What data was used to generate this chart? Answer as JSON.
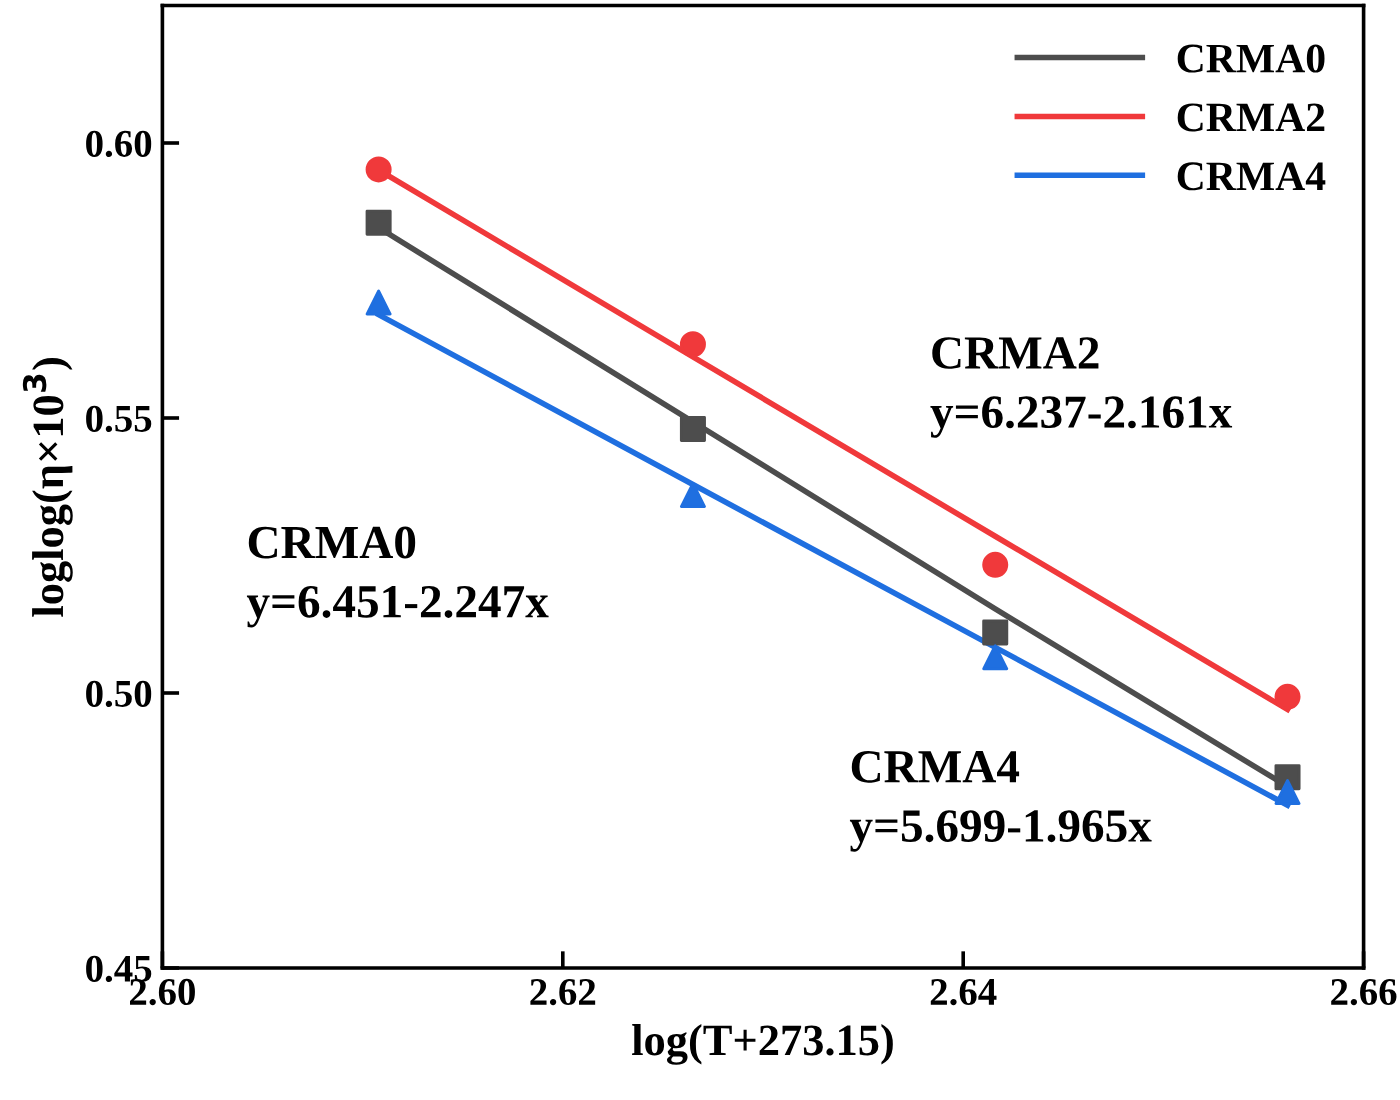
{
  "chart_data": {
    "type": "scatter",
    "xlabel": "log(T+273.15)",
    "ylabel": "loglog(η×10$^{3}$)",
    "xlim": [
      2.6,
      2.66
    ],
    "xticks": [
      {
        "value": 2.6,
        "label": "2.60"
      },
      2.62,
      2.64,
      2.66
    ],
    "ylim": [
      0.45,
      0.625
    ],
    "yticks": [
      0.45,
      {
        "value": 0.5,
        "label": "0.50"
      },
      0.55,
      {
        "value": 0.6,
        "label": "0.60"
      }
    ],
    "x": [
      2.6108,
      2.6265,
      2.6416,
      2.6562
    ],
    "grid": false,
    "legend": "top right",
    "series": [
      {
        "marker": "square",
        "color": "#4d4d4d",
        "values": [
          0.5855,
          0.548,
          0.511,
          0.4847
        ]
      },
      {
        "marker": "circle",
        "color": "#f0393b",
        "values": [
          0.5952,
          0.5634,
          0.5233,
          0.4993
        ]
      },
      {
        "marker": "triangle",
        "color": "#1f6fe0",
        "values": [
          0.571,
          0.536,
          0.5065,
          0.482
        ]
      },
      {
        "type": "line",
        "name": "CRMA0",
        "color": "#4d4d4d",
        "values": [
          0.5846,
          0.5493,
          0.5153,
          0.483
        ]
      },
      {
        "type": "line",
        "name": "CRMA2",
        "color": "#f0393b",
        "values": [
          0.5951,
          0.5611,
          0.5285,
          0.497
        ]
      },
      {
        "type": "line",
        "name": "CRMA4",
        "color": "#1f6fe0",
        "values": [
          0.5688,
          0.5379,
          0.5083,
          0.4796
        ]
      }
    ],
    "annotations": [
      "CRMA0\ny=6.451-2.247x",
      "CRMA2\ny=6.237-2.161x",
      "CRMA4\ny=5.699-1.965x"
    ]
  }
}
